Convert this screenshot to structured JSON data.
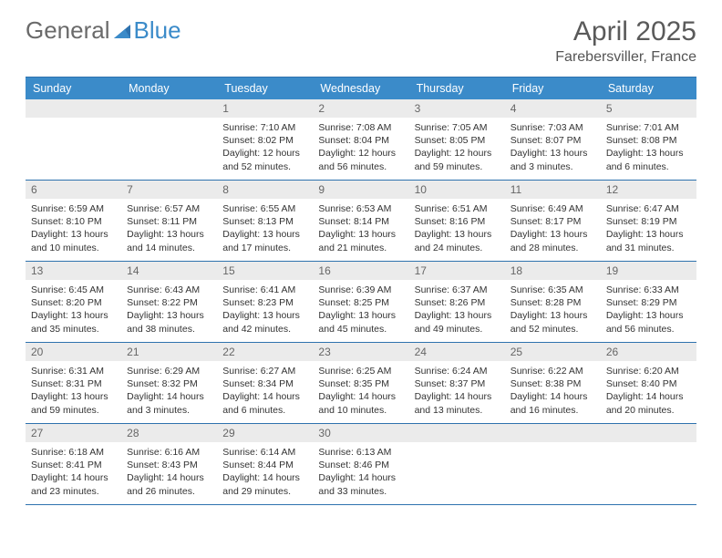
{
  "brand": {
    "part1": "General",
    "part2": "Blue"
  },
  "title": {
    "month": "April 2025",
    "location": "Farebersviller, France"
  },
  "colors": {
    "accent": "#3b8bc9",
    "accent_dark": "#2e72ae",
    "header_text": "#ffffff",
    "daynum_bg": "#ebebeb",
    "daynum_fg": "#666666",
    "body_fg": "#333333",
    "logo_gray": "#6a6a6a"
  },
  "day_headers": [
    "Sunday",
    "Monday",
    "Tuesday",
    "Wednesday",
    "Thursday",
    "Friday",
    "Saturday"
  ],
  "weeks": [
    [
      {
        "n": "",
        "sunrise": "",
        "sunset": "",
        "daylight": ""
      },
      {
        "n": "",
        "sunrise": "",
        "sunset": "",
        "daylight": ""
      },
      {
        "n": "1",
        "sunrise": "Sunrise: 7:10 AM",
        "sunset": "Sunset: 8:02 PM",
        "daylight": "Daylight: 12 hours and 52 minutes."
      },
      {
        "n": "2",
        "sunrise": "Sunrise: 7:08 AM",
        "sunset": "Sunset: 8:04 PM",
        "daylight": "Daylight: 12 hours and 56 minutes."
      },
      {
        "n": "3",
        "sunrise": "Sunrise: 7:05 AM",
        "sunset": "Sunset: 8:05 PM",
        "daylight": "Daylight: 12 hours and 59 minutes."
      },
      {
        "n": "4",
        "sunrise": "Sunrise: 7:03 AM",
        "sunset": "Sunset: 8:07 PM",
        "daylight": "Daylight: 13 hours and 3 minutes."
      },
      {
        "n": "5",
        "sunrise": "Sunrise: 7:01 AM",
        "sunset": "Sunset: 8:08 PM",
        "daylight": "Daylight: 13 hours and 6 minutes."
      }
    ],
    [
      {
        "n": "6",
        "sunrise": "Sunrise: 6:59 AM",
        "sunset": "Sunset: 8:10 PM",
        "daylight": "Daylight: 13 hours and 10 minutes."
      },
      {
        "n": "7",
        "sunrise": "Sunrise: 6:57 AM",
        "sunset": "Sunset: 8:11 PM",
        "daylight": "Daylight: 13 hours and 14 minutes."
      },
      {
        "n": "8",
        "sunrise": "Sunrise: 6:55 AM",
        "sunset": "Sunset: 8:13 PM",
        "daylight": "Daylight: 13 hours and 17 minutes."
      },
      {
        "n": "9",
        "sunrise": "Sunrise: 6:53 AM",
        "sunset": "Sunset: 8:14 PM",
        "daylight": "Daylight: 13 hours and 21 minutes."
      },
      {
        "n": "10",
        "sunrise": "Sunrise: 6:51 AM",
        "sunset": "Sunset: 8:16 PM",
        "daylight": "Daylight: 13 hours and 24 minutes."
      },
      {
        "n": "11",
        "sunrise": "Sunrise: 6:49 AM",
        "sunset": "Sunset: 8:17 PM",
        "daylight": "Daylight: 13 hours and 28 minutes."
      },
      {
        "n": "12",
        "sunrise": "Sunrise: 6:47 AM",
        "sunset": "Sunset: 8:19 PM",
        "daylight": "Daylight: 13 hours and 31 minutes."
      }
    ],
    [
      {
        "n": "13",
        "sunrise": "Sunrise: 6:45 AM",
        "sunset": "Sunset: 8:20 PM",
        "daylight": "Daylight: 13 hours and 35 minutes."
      },
      {
        "n": "14",
        "sunrise": "Sunrise: 6:43 AM",
        "sunset": "Sunset: 8:22 PM",
        "daylight": "Daylight: 13 hours and 38 minutes."
      },
      {
        "n": "15",
        "sunrise": "Sunrise: 6:41 AM",
        "sunset": "Sunset: 8:23 PM",
        "daylight": "Daylight: 13 hours and 42 minutes."
      },
      {
        "n": "16",
        "sunrise": "Sunrise: 6:39 AM",
        "sunset": "Sunset: 8:25 PM",
        "daylight": "Daylight: 13 hours and 45 minutes."
      },
      {
        "n": "17",
        "sunrise": "Sunrise: 6:37 AM",
        "sunset": "Sunset: 8:26 PM",
        "daylight": "Daylight: 13 hours and 49 minutes."
      },
      {
        "n": "18",
        "sunrise": "Sunrise: 6:35 AM",
        "sunset": "Sunset: 8:28 PM",
        "daylight": "Daylight: 13 hours and 52 minutes."
      },
      {
        "n": "19",
        "sunrise": "Sunrise: 6:33 AM",
        "sunset": "Sunset: 8:29 PM",
        "daylight": "Daylight: 13 hours and 56 minutes."
      }
    ],
    [
      {
        "n": "20",
        "sunrise": "Sunrise: 6:31 AM",
        "sunset": "Sunset: 8:31 PM",
        "daylight": "Daylight: 13 hours and 59 minutes."
      },
      {
        "n": "21",
        "sunrise": "Sunrise: 6:29 AM",
        "sunset": "Sunset: 8:32 PM",
        "daylight": "Daylight: 14 hours and 3 minutes."
      },
      {
        "n": "22",
        "sunrise": "Sunrise: 6:27 AM",
        "sunset": "Sunset: 8:34 PM",
        "daylight": "Daylight: 14 hours and 6 minutes."
      },
      {
        "n": "23",
        "sunrise": "Sunrise: 6:25 AM",
        "sunset": "Sunset: 8:35 PM",
        "daylight": "Daylight: 14 hours and 10 minutes."
      },
      {
        "n": "24",
        "sunrise": "Sunrise: 6:24 AM",
        "sunset": "Sunset: 8:37 PM",
        "daylight": "Daylight: 14 hours and 13 minutes."
      },
      {
        "n": "25",
        "sunrise": "Sunrise: 6:22 AM",
        "sunset": "Sunset: 8:38 PM",
        "daylight": "Daylight: 14 hours and 16 minutes."
      },
      {
        "n": "26",
        "sunrise": "Sunrise: 6:20 AM",
        "sunset": "Sunset: 8:40 PM",
        "daylight": "Daylight: 14 hours and 20 minutes."
      }
    ],
    [
      {
        "n": "27",
        "sunrise": "Sunrise: 6:18 AM",
        "sunset": "Sunset: 8:41 PM",
        "daylight": "Daylight: 14 hours and 23 minutes."
      },
      {
        "n": "28",
        "sunrise": "Sunrise: 6:16 AM",
        "sunset": "Sunset: 8:43 PM",
        "daylight": "Daylight: 14 hours and 26 minutes."
      },
      {
        "n": "29",
        "sunrise": "Sunrise: 6:14 AM",
        "sunset": "Sunset: 8:44 PM",
        "daylight": "Daylight: 14 hours and 29 minutes."
      },
      {
        "n": "30",
        "sunrise": "Sunrise: 6:13 AM",
        "sunset": "Sunset: 8:46 PM",
        "daylight": "Daylight: 14 hours and 33 minutes."
      },
      {
        "n": "",
        "sunrise": "",
        "sunset": "",
        "daylight": ""
      },
      {
        "n": "",
        "sunrise": "",
        "sunset": "",
        "daylight": ""
      },
      {
        "n": "",
        "sunrise": "",
        "sunset": "",
        "daylight": ""
      }
    ]
  ]
}
